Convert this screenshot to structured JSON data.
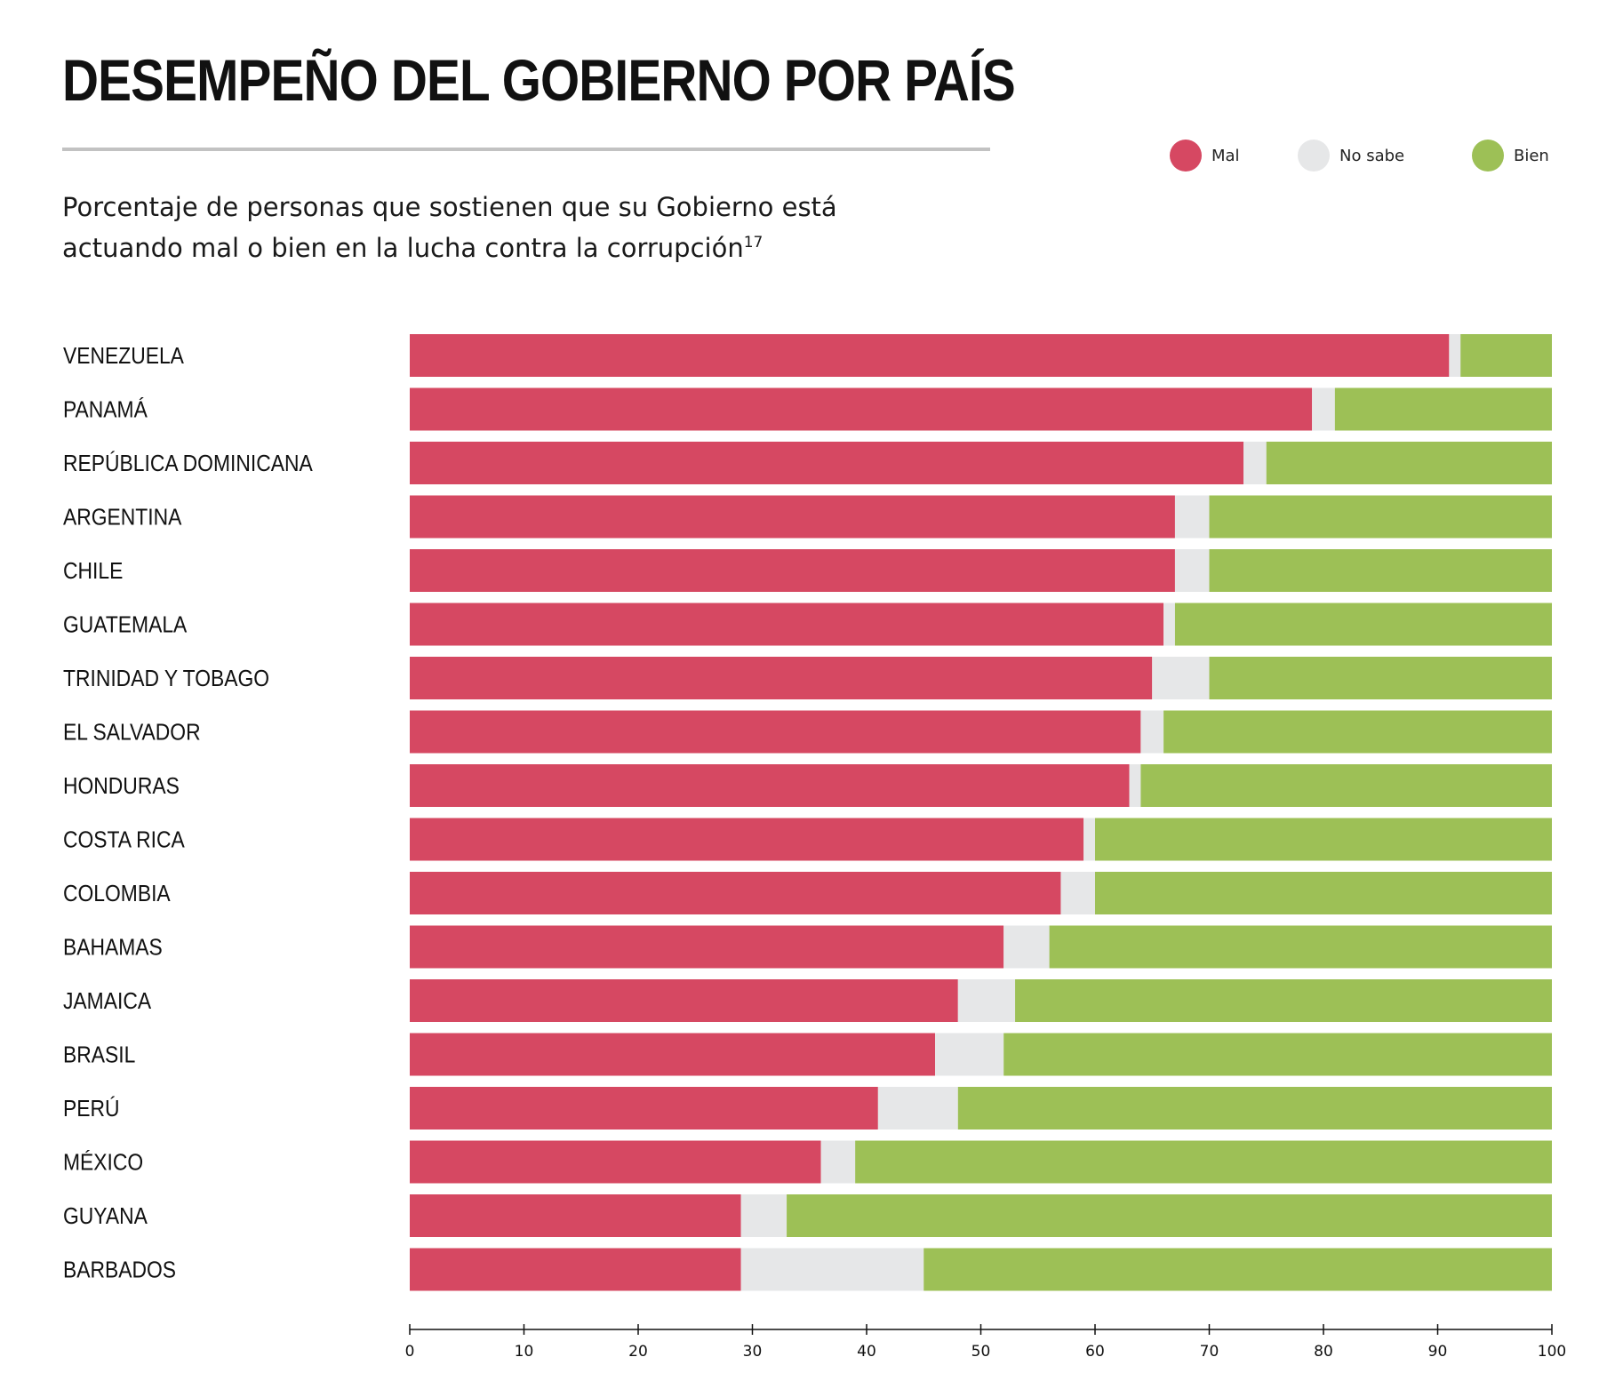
{
  "header": {
    "title": "DESEMPEÑO DEL GOBIERNO POR PAÍS",
    "subtitle_line1": "Porcentaje de personas que sostienen que su Gobierno está",
    "subtitle_line2": "actuando mal o bien en la lucha contra la corrupción",
    "footnote": "17"
  },
  "legend": [
    {
      "name": "Mal",
      "color": "#d64862"
    },
    {
      "name": "No sabe",
      "color": "#e6e7e8"
    },
    {
      "name": "Bien",
      "color": "#9dc056"
    }
  ],
  "chart_data": {
    "type": "bar",
    "orientation": "horizontal",
    "stacked": true,
    "categories": [
      "VENEZUELA",
      "PANAMÁ",
      "REPÚBLICA DOMINICANA",
      "ARGENTINA",
      "CHILE",
      "GUATEMALA",
      "TRINIDAD Y TOBAGO",
      "EL SALVADOR",
      "HONDURAS",
      "COSTA RICA",
      "COLOMBIA",
      "BAHAMAS",
      "JAMAICA",
      "BRASIL",
      "PERÚ",
      "MÉXICO",
      "GUYANA",
      "BARBADOS"
    ],
    "series": [
      {
        "name": "Mal",
        "color": "#d64862",
        "values": [
          91,
          79,
          73,
          67,
          67,
          66,
          65,
          64,
          63,
          59,
          57,
          52,
          48,
          46,
          41,
          36,
          29,
          29
        ]
      },
      {
        "name": "No sabe",
        "color": "#e6e7e8",
        "values": [
          1,
          2,
          2,
          3,
          3,
          1,
          5,
          2,
          1,
          1,
          3,
          4,
          5,
          6,
          7,
          3,
          4,
          16
        ]
      },
      {
        "name": "Bien",
        "color": "#9dc056",
        "values": [
          8,
          19,
          25,
          30,
          30,
          33,
          30,
          34,
          36,
          40,
          40,
          44,
          47,
          48,
          52,
          61,
          67,
          55
        ]
      }
    ],
    "xlim": [
      0,
      100
    ],
    "xticks": [
      "0",
      "10",
      "20",
      "30",
      "40",
      "50",
      "60",
      "70",
      "80",
      "90",
      "100"
    ],
    "legend_position": "top-right",
    "grid": false
  }
}
